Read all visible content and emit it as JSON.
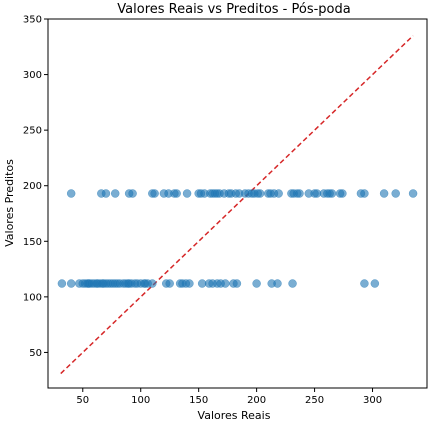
{
  "chart_data": {
    "type": "scatter",
    "title": "Valores Reais vs Preditos - Pós-poda",
    "xlabel": "Valores Reais",
    "ylabel": "Valores Preditos",
    "xlim": [
      20,
      347
    ],
    "ylim": [
      18,
      350
    ],
    "xticks": [
      50,
      100,
      150,
      200,
      250,
      300
    ],
    "yticks": [
      50,
      100,
      150,
      200,
      250,
      300,
      350
    ],
    "grid": false,
    "point_color": "#1f77b4",
    "reference_line": {
      "style": "dashed",
      "color": "#d62728",
      "from": [
        31,
        31
      ],
      "to": [
        335,
        335
      ]
    },
    "series": [
      {
        "points": [
          [
            40,
            193
          ],
          [
            66,
            193
          ],
          [
            70,
            193
          ],
          [
            78,
            193
          ],
          [
            90,
            193
          ],
          [
            93,
            193
          ],
          [
            110,
            193
          ],
          [
            112,
            193
          ],
          [
            120,
            193
          ],
          [
            124,
            193
          ],
          [
            129,
            193
          ],
          [
            131,
            193
          ],
          [
            140,
            193
          ],
          [
            150,
            193
          ],
          [
            152,
            193
          ],
          [
            155,
            193
          ],
          [
            160,
            193
          ],
          [
            162,
            193
          ],
          [
            164,
            193
          ],
          [
            166,
            193
          ],
          [
            168,
            193
          ],
          [
            172,
            193
          ],
          [
            176,
            193
          ],
          [
            178,
            193
          ],
          [
            182,
            193
          ],
          [
            185,
            193
          ],
          [
            190,
            193
          ],
          [
            193,
            193
          ],
          [
            196,
            193
          ],
          [
            198,
            193
          ],
          [
            201,
            193
          ],
          [
            203,
            193
          ],
          [
            210,
            193
          ],
          [
            212,
            193
          ],
          [
            215,
            193
          ],
          [
            219,
            193
          ],
          [
            230,
            193
          ],
          [
            232,
            193
          ],
          [
            235,
            193
          ],
          [
            237,
            193
          ],
          [
            245,
            193
          ],
          [
            250,
            193
          ],
          [
            252,
            193
          ],
          [
            258,
            193
          ],
          [
            261,
            193
          ],
          [
            263,
            193
          ],
          [
            265,
            193
          ],
          [
            272,
            193
          ],
          [
            274,
            193
          ],
          [
            290,
            193
          ],
          [
            293,
            193
          ],
          [
            310,
            193
          ],
          [
            320,
            193
          ],
          [
            335,
            193
          ],
          [
            32,
            112
          ],
          [
            40,
            112
          ],
          [
            47,
            112
          ],
          [
            50,
            112
          ],
          [
            52,
            112
          ],
          [
            54,
            112
          ],
          [
            55,
            112
          ],
          [
            56,
            112
          ],
          [
            58,
            112
          ],
          [
            60,
            112
          ],
          [
            62,
            112
          ],
          [
            63,
            112
          ],
          [
            65,
            112
          ],
          [
            67,
            112
          ],
          [
            68,
            112
          ],
          [
            70,
            112
          ],
          [
            72,
            112
          ],
          [
            74,
            112
          ],
          [
            76,
            112
          ],
          [
            78,
            112
          ],
          [
            80,
            112
          ],
          [
            82,
            112
          ],
          [
            85,
            112
          ],
          [
            87,
            112
          ],
          [
            89,
            112
          ],
          [
            90,
            112
          ],
          [
            92,
            112
          ],
          [
            95,
            112
          ],
          [
            97,
            112
          ],
          [
            100,
            112
          ],
          [
            103,
            112
          ],
          [
            104,
            112
          ],
          [
            106,
            112
          ],
          [
            110,
            112
          ],
          [
            122,
            112
          ],
          [
            125,
            112
          ],
          [
            134,
            112
          ],
          [
            136,
            112
          ],
          [
            139,
            112
          ],
          [
            142,
            112
          ],
          [
            153,
            112
          ],
          [
            159,
            112
          ],
          [
            162,
            112
          ],
          [
            166,
            112
          ],
          [
            169,
            112
          ],
          [
            173,
            112
          ],
          [
            180,
            112
          ],
          [
            183,
            112
          ],
          [
            200,
            112
          ],
          [
            213,
            112
          ],
          [
            218,
            112
          ],
          [
            231,
            112
          ],
          [
            293,
            112
          ],
          [
            302,
            112
          ]
        ]
      }
    ]
  }
}
